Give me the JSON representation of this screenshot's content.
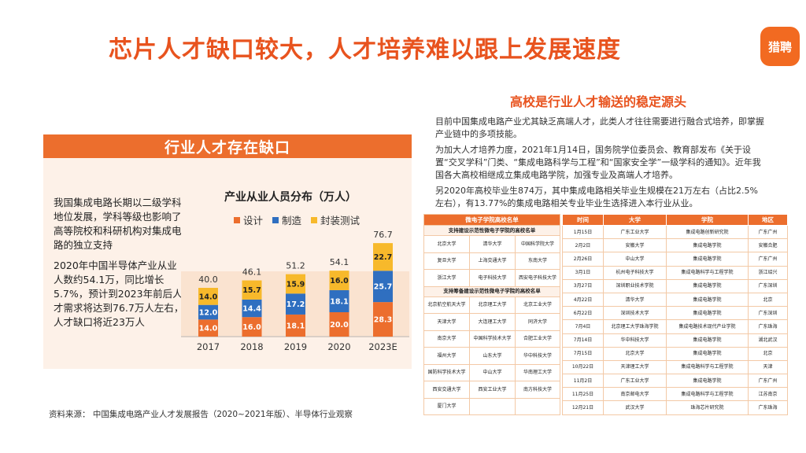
{
  "header": {
    "title": "芯片人才缺口较大，人才培养难以跟上发展速度",
    "logo_text": "猎聘"
  },
  "left_panel": {
    "heading": "行业人才存在缺口",
    "paragraph1": "我国集成电路长期以二级学科地位发展，学科等级也影响了高等院校和科研机构对集成电路的独立支持",
    "paragraph2": "2020年中国半导体产业从业人数约54.1万，同比增长5.7%，预计到2023年前后人才需求将达到76.7万人左右，人才缺口将近23万人"
  },
  "chart_data": {
    "type": "bar",
    "stacked": true,
    "title": "产业从业人员分布（万人）",
    "categories": [
      "2017",
      "2018",
      "2019",
      "2020",
      "2023E"
    ],
    "series": [
      {
        "name": "设计",
        "color": "#ec6e2d",
        "values": [
          14.0,
          16.0,
          18.1,
          20.0,
          28.3
        ]
      },
      {
        "name": "制造",
        "color": "#2f6fc0",
        "values": [
          12.0,
          14.4,
          17.2,
          18.1,
          25.7
        ]
      },
      {
        "name": "封装测试",
        "color": "#f7b92b",
        "values": [
          14.0,
          15.7,
          15.9,
          16.0,
          22.7
        ]
      }
    ],
    "totals": [
      "40.0",
      "46.1",
      "51.2",
      "54.1",
      "76.7"
    ],
    "segment_labels": [
      [
        "14.0",
        "16.0",
        "18.1",
        "20.0",
        "28.3"
      ],
      [
        "12.0",
        "14.4",
        "17.2",
        "18.1",
        "25.7"
      ],
      [
        "14.0",
        "15.7",
        "15.9",
        "16.0",
        "22.7"
      ]
    ],
    "legend_position": "top",
    "highlight_color": "#fae3d0"
  },
  "source": "资料来源：  中国集成电路产业人才发展报告（2020~2021年版）、半导体行业观察",
  "right_section": {
    "heading": "高校是行业人才输送的稳定源头",
    "paragraph1": "目前中国集成电路产业尤其缺乏高端人才，此类人才往往需要进行融合式培养，即掌握产业链中的多项技能。",
    "paragraph2": "为加大人才培养力度，2021年1月14日，国务院学位委员会、教育部发布《关于设置“交叉学科”门类、“集成电路科学与工程”和“国家安全学”一级学科的通知》。近年我国各大高校相继成立集成电路学院，加强专业及高端人才培养。",
    "paragraph3": "另2020年高校毕业生874万，其中集成电路相关毕业生规模在21万左右（占比2.5%左右），有13.77%的集成电路相关专业毕业生选择进入本行业从业。"
  },
  "schools_table": {
    "title": "微电子学院高校名单",
    "group1_title": "支持建设示范性微电子学院的高校名单",
    "group1_rows": [
      [
        "北京大学",
        "清华大学",
        "中国科学院大学"
      ],
      [
        "复旦大学",
        "上海交通大学",
        "东南大学"
      ],
      [
        "浙江大学",
        "电子科技大学",
        "西安电子科技大学"
      ]
    ],
    "group2_title": "支持筹备建设示范性微电子学院的高校名单",
    "group2_rows": [
      [
        "北京航空航天大学",
        "北京理工大学",
        "北京工业大学"
      ],
      [
        "天津大学",
        "大连理工大学",
        "同济大学"
      ],
      [
        "南京大学",
        "中国科学技术大学",
        "合肥工业大学"
      ],
      [
        "福州大学",
        "山东大学",
        "华中科技大学"
      ],
      [
        "国防科学技术大学",
        "中山大学",
        "华南理工大学"
      ],
      [
        "西安交通大学",
        "西安工业大学",
        "南方科技大学"
      ],
      [
        "厦门大学",
        "",
        ""
      ]
    ]
  },
  "events_table": {
    "headers": [
      "时间",
      "大学",
      "学院",
      "地区"
    ],
    "rows": [
      [
        "1月15日",
        "广东工业大学",
        "集成电路创新研究院",
        "广东广州"
      ],
      [
        "2月2日",
        "安徽大学",
        "集成电路学院",
        "安徽合肥"
      ],
      [
        "2月26日",
        "中山大学",
        "集成电路学院",
        "广东广州"
      ],
      [
        "3月1日",
        "杭州电子科技大学",
        "集成电路科学与工程学院",
        "浙江绍兴"
      ],
      [
        "3月27日",
        "深圳职业技术学院",
        "集成电路学院",
        "广东深圳"
      ],
      [
        "4月22日",
        "清华大学",
        "集成电路学院",
        "北京"
      ],
      [
        "6月22日",
        "深圳技术大学",
        "集成电路学院",
        "广东深圳"
      ],
      [
        "7月4日",
        "北京理工大学珠海学院",
        "集成电路技术现代产业学院",
        "广东珠海"
      ],
      [
        "7月14日",
        "华中科技大学",
        "集成电路学院",
        "湖北武汉"
      ],
      [
        "7月15日",
        "北京大学",
        "集成电路学院",
        "北京"
      ],
      [
        "10月22日",
        "天津理工大学",
        "集成电路科学与工程学院",
        "天津"
      ],
      [
        "11月2日",
        "广东工业大学",
        "集成电路学院",
        "广东广州"
      ],
      [
        "11月25日",
        "南京邮电大学",
        "集成电路科学与工程学院",
        "江苏南京"
      ],
      [
        "12月21日",
        "武汉大学",
        "珠海芯片研究院",
        "广东珠海"
      ]
    ]
  }
}
